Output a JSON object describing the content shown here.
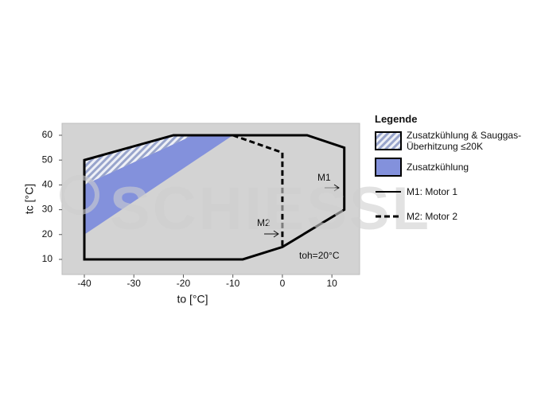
{
  "chart_data": {
    "type": "area",
    "x_label": "to [°C]",
    "y_label": "tc [°C]",
    "xlim": [
      -44.5,
      15.6
    ],
    "ylim": [
      3.9,
      64.8
    ],
    "xticks": [
      -40,
      -30,
      -20,
      -10,
      0,
      10
    ],
    "yticks": [
      10,
      20,
      30,
      40,
      50,
      60
    ],
    "legend_title": "Legende",
    "watermark": "SCHIESSL",
    "annotations": [
      "M1",
      "M2",
      "toh=20°C"
    ],
    "series": [
      {
        "name": "Zusatzkühlung & Sauggas-Überhitzung ≤20K",
        "color": "#a9b3d6",
        "style": "hatch",
        "x": [
          -40,
          -22,
          -18,
          -40
        ],
        "values": [
          50,
          60,
          60,
          40
        ]
      },
      {
        "name": "Zusatzkühlung",
        "color": "#8391dc",
        "style": "fill",
        "x": [
          -40,
          -18,
          -10,
          -40
        ],
        "values": [
          40,
          60,
          60,
          20
        ]
      },
      {
        "name": "M1: Motor 1",
        "color": "#000000",
        "style": "solid",
        "x": [
          -40,
          -8,
          0,
          12.5,
          12.5,
          5,
          -22,
          -40
        ],
        "values": [
          10,
          10,
          15,
          30,
          55,
          60,
          60,
          50
        ]
      },
      {
        "name": "M2: Motor 2",
        "color": "#000000",
        "style": "dashed",
        "x": [
          -10,
          0,
          0
        ],
        "values": [
          60,
          53,
          15
        ]
      }
    ]
  }
}
